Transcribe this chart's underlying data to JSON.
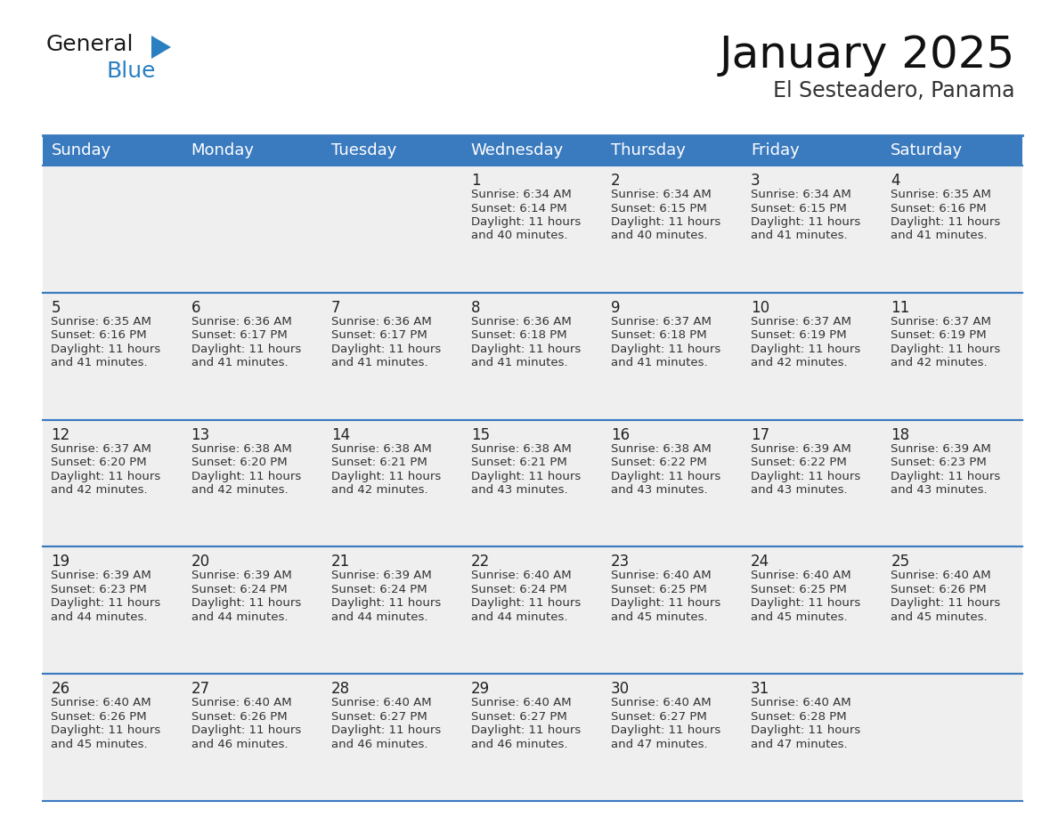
{
  "title": "January 2025",
  "subtitle": "El Sesteadero, Panama",
  "header_color": "#3a7abf",
  "header_text_color": "#ffffff",
  "cell_bg_color": "#efefef",
  "border_color": "#3a7abf",
  "day_names": [
    "Sunday",
    "Monday",
    "Tuesday",
    "Wednesday",
    "Thursday",
    "Friday",
    "Saturday"
  ],
  "title_fontsize": 36,
  "subtitle_fontsize": 17,
  "day_header_fontsize": 13,
  "cell_day_fontsize": 12,
  "cell_text_fontsize": 9.5,
  "logo_general_color": "#1a1a1a",
  "logo_blue_color": "#2a7fc1",
  "logo_triangle_color": "#2a7fc1",
  "days": [
    {
      "date": 1,
      "col": 3,
      "row": 0,
      "sunrise": "6:34 AM",
      "sunset": "6:14 PM",
      "daylight_hours": 11,
      "daylight_minutes": 40
    },
    {
      "date": 2,
      "col": 4,
      "row": 0,
      "sunrise": "6:34 AM",
      "sunset": "6:15 PM",
      "daylight_hours": 11,
      "daylight_minutes": 40
    },
    {
      "date": 3,
      "col": 5,
      "row": 0,
      "sunrise": "6:34 AM",
      "sunset": "6:15 PM",
      "daylight_hours": 11,
      "daylight_minutes": 41
    },
    {
      "date": 4,
      "col": 6,
      "row": 0,
      "sunrise": "6:35 AM",
      "sunset": "6:16 PM",
      "daylight_hours": 11,
      "daylight_minutes": 41
    },
    {
      "date": 5,
      "col": 0,
      "row": 1,
      "sunrise": "6:35 AM",
      "sunset": "6:16 PM",
      "daylight_hours": 11,
      "daylight_minutes": 41
    },
    {
      "date": 6,
      "col": 1,
      "row": 1,
      "sunrise": "6:36 AM",
      "sunset": "6:17 PM",
      "daylight_hours": 11,
      "daylight_minutes": 41
    },
    {
      "date": 7,
      "col": 2,
      "row": 1,
      "sunrise": "6:36 AM",
      "sunset": "6:17 PM",
      "daylight_hours": 11,
      "daylight_minutes": 41
    },
    {
      "date": 8,
      "col": 3,
      "row": 1,
      "sunrise": "6:36 AM",
      "sunset": "6:18 PM",
      "daylight_hours": 11,
      "daylight_minutes": 41
    },
    {
      "date": 9,
      "col": 4,
      "row": 1,
      "sunrise": "6:37 AM",
      "sunset": "6:18 PM",
      "daylight_hours": 11,
      "daylight_minutes": 41
    },
    {
      "date": 10,
      "col": 5,
      "row": 1,
      "sunrise": "6:37 AM",
      "sunset": "6:19 PM",
      "daylight_hours": 11,
      "daylight_minutes": 42
    },
    {
      "date": 11,
      "col": 6,
      "row": 1,
      "sunrise": "6:37 AM",
      "sunset": "6:19 PM",
      "daylight_hours": 11,
      "daylight_minutes": 42
    },
    {
      "date": 12,
      "col": 0,
      "row": 2,
      "sunrise": "6:37 AM",
      "sunset": "6:20 PM",
      "daylight_hours": 11,
      "daylight_minutes": 42
    },
    {
      "date": 13,
      "col": 1,
      "row": 2,
      "sunrise": "6:38 AM",
      "sunset": "6:20 PM",
      "daylight_hours": 11,
      "daylight_minutes": 42
    },
    {
      "date": 14,
      "col": 2,
      "row": 2,
      "sunrise": "6:38 AM",
      "sunset": "6:21 PM",
      "daylight_hours": 11,
      "daylight_minutes": 42
    },
    {
      "date": 15,
      "col": 3,
      "row": 2,
      "sunrise": "6:38 AM",
      "sunset": "6:21 PM",
      "daylight_hours": 11,
      "daylight_minutes": 43
    },
    {
      "date": 16,
      "col": 4,
      "row": 2,
      "sunrise": "6:38 AM",
      "sunset": "6:22 PM",
      "daylight_hours": 11,
      "daylight_minutes": 43
    },
    {
      "date": 17,
      "col": 5,
      "row": 2,
      "sunrise": "6:39 AM",
      "sunset": "6:22 PM",
      "daylight_hours": 11,
      "daylight_minutes": 43
    },
    {
      "date": 18,
      "col": 6,
      "row": 2,
      "sunrise": "6:39 AM",
      "sunset": "6:23 PM",
      "daylight_hours": 11,
      "daylight_minutes": 43
    },
    {
      "date": 19,
      "col": 0,
      "row": 3,
      "sunrise": "6:39 AM",
      "sunset": "6:23 PM",
      "daylight_hours": 11,
      "daylight_minutes": 44
    },
    {
      "date": 20,
      "col": 1,
      "row": 3,
      "sunrise": "6:39 AM",
      "sunset": "6:24 PM",
      "daylight_hours": 11,
      "daylight_minutes": 44
    },
    {
      "date": 21,
      "col": 2,
      "row": 3,
      "sunrise": "6:39 AM",
      "sunset": "6:24 PM",
      "daylight_hours": 11,
      "daylight_minutes": 44
    },
    {
      "date": 22,
      "col": 3,
      "row": 3,
      "sunrise": "6:40 AM",
      "sunset": "6:24 PM",
      "daylight_hours": 11,
      "daylight_minutes": 44
    },
    {
      "date": 23,
      "col": 4,
      "row": 3,
      "sunrise": "6:40 AM",
      "sunset": "6:25 PM",
      "daylight_hours": 11,
      "daylight_minutes": 45
    },
    {
      "date": 24,
      "col": 5,
      "row": 3,
      "sunrise": "6:40 AM",
      "sunset": "6:25 PM",
      "daylight_hours": 11,
      "daylight_minutes": 45
    },
    {
      "date": 25,
      "col": 6,
      "row": 3,
      "sunrise": "6:40 AM",
      "sunset": "6:26 PM",
      "daylight_hours": 11,
      "daylight_minutes": 45
    },
    {
      "date": 26,
      "col": 0,
      "row": 4,
      "sunrise": "6:40 AM",
      "sunset": "6:26 PM",
      "daylight_hours": 11,
      "daylight_minutes": 45
    },
    {
      "date": 27,
      "col": 1,
      "row": 4,
      "sunrise": "6:40 AM",
      "sunset": "6:26 PM",
      "daylight_hours": 11,
      "daylight_minutes": 46
    },
    {
      "date": 28,
      "col": 2,
      "row": 4,
      "sunrise": "6:40 AM",
      "sunset": "6:27 PM",
      "daylight_hours": 11,
      "daylight_minutes": 46
    },
    {
      "date": 29,
      "col": 3,
      "row": 4,
      "sunrise": "6:40 AM",
      "sunset": "6:27 PM",
      "daylight_hours": 11,
      "daylight_minutes": 46
    },
    {
      "date": 30,
      "col": 4,
      "row": 4,
      "sunrise": "6:40 AM",
      "sunset": "6:27 PM",
      "daylight_hours": 11,
      "daylight_minutes": 47
    },
    {
      "date": 31,
      "col": 5,
      "row": 4,
      "sunrise": "6:40 AM",
      "sunset": "6:28 PM",
      "daylight_hours": 11,
      "daylight_minutes": 47
    }
  ]
}
